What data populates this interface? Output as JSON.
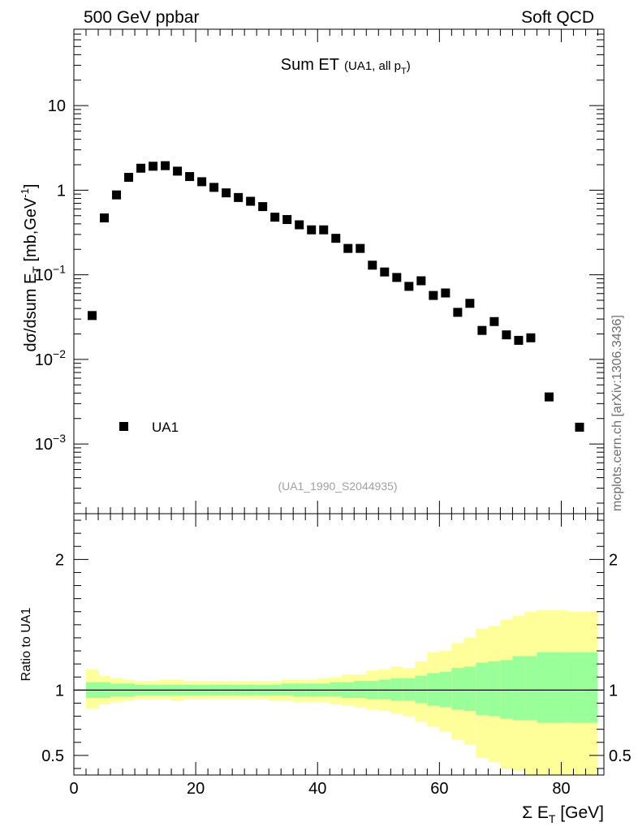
{
  "header": {
    "left": "500 GeV ppbar",
    "right": "Soft QCD"
  },
  "watermark": "mcplots.cern.ch [arXiv:1306.3436]",
  "chart_data": [
    {
      "type": "scatter",
      "panel": "main",
      "title_main": "Sum ET",
      "title_sub": "(UA1, all p",
      "title_sub_index": "T",
      "title_sub_close": ")",
      "ylabel": "dσ/dsum E",
      "ylabel_index": "T",
      "ylabel_unit_open": " [mb,GeV",
      "ylabel_unit_power": "-1",
      "ylabel_unit_close": "]",
      "yscale": "log",
      "ylim": [
        0.00015,
        80
      ],
      "xlim": [
        0,
        87
      ],
      "yticks": [
        {
          "value": 10,
          "base": "10",
          "exp": ""
        },
        {
          "value": 1,
          "base": "1",
          "exp": ""
        },
        {
          "value": 0.1,
          "base": "10",
          "exp": "−1"
        },
        {
          "value": 0.01,
          "base": "10",
          "exp": "−2"
        },
        {
          "value": 0.001,
          "base": "10",
          "exp": "−3"
        }
      ],
      "series": [
        {
          "name": "UA1",
          "color": "#000000",
          "x": [
            3,
            5,
            7,
            9,
            11,
            13,
            15,
            17,
            19,
            21,
            23,
            25,
            27,
            29,
            31,
            33,
            35,
            37,
            39,
            41,
            43,
            45,
            47,
            49,
            51,
            53,
            55,
            57,
            59,
            61,
            63,
            65,
            67,
            69,
            71,
            73,
            75,
            78,
            83
          ],
          "y": [
            0.033,
            0.47,
            0.88,
            1.42,
            1.82,
            1.92,
            1.95,
            1.68,
            1.45,
            1.26,
            1.08,
            0.93,
            0.82,
            0.74,
            0.64,
            0.48,
            0.45,
            0.39,
            0.34,
            0.34,
            0.27,
            0.205,
            0.205,
            0.13,
            0.108,
            0.093,
            0.073,
            0.085,
            0.057,
            0.061,
            0.036,
            0.046,
            0.022,
            0.028,
            0.0195,
            0.0168,
            0.018,
            0.0036,
            0.00158
          ]
        }
      ],
      "legend": [
        {
          "label": "UA1",
          "marker": "square"
        }
      ],
      "annotation": "(UA1_1990_S2044935)"
    },
    {
      "type": "area",
      "panel": "ratio",
      "ylabel": "Ratio to UA1",
      "xlabel": "Σ E",
      "xlabel_index": "T",
      "xlabel_unit": " [GeV]",
      "xlim": [
        0,
        87
      ],
      "ylim": [
        0.35,
        2.35
      ],
      "xticks": [
        "0",
        "20",
        "40",
        "60",
        "80"
      ],
      "yticks": [
        "0.5",
        "1",
        "2"
      ],
      "reference": 1,
      "colors": {
        "inner": "#99ff99",
        "outer": "#ffff99",
        "reference": "#000000"
      },
      "bins": [
        {
          "lo": 2,
          "hi": 4,
          "in_lo": 0.94,
          "in_hi": 1.06,
          "out_lo": 0.86,
          "out_hi": 1.16
        },
        {
          "lo": 4,
          "hi": 6,
          "in_lo": 0.94,
          "in_hi": 1.06,
          "out_lo": 0.89,
          "out_hi": 1.11
        },
        {
          "lo": 6,
          "hi": 8,
          "in_lo": 0.95,
          "in_hi": 1.05,
          "out_lo": 0.91,
          "out_hi": 1.09
        },
        {
          "lo": 8,
          "hi": 10,
          "in_lo": 0.95,
          "in_hi": 1.05,
          "out_lo": 0.92,
          "out_hi": 1.08
        },
        {
          "lo": 10,
          "hi": 12,
          "in_lo": 0.96,
          "in_hi": 1.04,
          "out_lo": 0.93,
          "out_hi": 1.07
        },
        {
          "lo": 12,
          "hi": 14,
          "in_lo": 0.96,
          "in_hi": 1.04,
          "out_lo": 0.93,
          "out_hi": 1.07
        },
        {
          "lo": 14,
          "hi": 16,
          "in_lo": 0.96,
          "in_hi": 1.04,
          "out_lo": 0.93,
          "out_hi": 1.08
        },
        {
          "lo": 16,
          "hi": 18,
          "in_lo": 0.96,
          "in_hi": 1.04,
          "out_lo": 0.92,
          "out_hi": 1.08
        },
        {
          "lo": 18,
          "hi": 20,
          "in_lo": 0.96,
          "in_hi": 1.04,
          "out_lo": 0.93,
          "out_hi": 1.07
        },
        {
          "lo": 20,
          "hi": 22,
          "in_lo": 0.96,
          "in_hi": 1.04,
          "out_lo": 0.93,
          "out_hi": 1.07
        },
        {
          "lo": 22,
          "hi": 24,
          "in_lo": 0.96,
          "in_hi": 1.04,
          "out_lo": 0.93,
          "out_hi": 1.07
        },
        {
          "lo": 24,
          "hi": 26,
          "in_lo": 0.96,
          "in_hi": 1.04,
          "out_lo": 0.93,
          "out_hi": 1.07
        },
        {
          "lo": 26,
          "hi": 28,
          "in_lo": 0.96,
          "in_hi": 1.04,
          "out_lo": 0.93,
          "out_hi": 1.07
        },
        {
          "lo": 28,
          "hi": 30,
          "in_lo": 0.96,
          "in_hi": 1.04,
          "out_lo": 0.93,
          "out_hi": 1.07
        },
        {
          "lo": 30,
          "hi": 32,
          "in_lo": 0.96,
          "in_hi": 1.04,
          "out_lo": 0.93,
          "out_hi": 1.07
        },
        {
          "lo": 32,
          "hi": 34,
          "in_lo": 0.96,
          "in_hi": 1.04,
          "out_lo": 0.92,
          "out_hi": 1.07
        },
        {
          "lo": 34,
          "hi": 36,
          "in_lo": 0.96,
          "in_hi": 1.05,
          "out_lo": 0.92,
          "out_hi": 1.08
        },
        {
          "lo": 36,
          "hi": 38,
          "in_lo": 0.95,
          "in_hi": 1.05,
          "out_lo": 0.91,
          "out_hi": 1.08
        },
        {
          "lo": 38,
          "hi": 40,
          "in_lo": 0.95,
          "in_hi": 1.05,
          "out_lo": 0.91,
          "out_hi": 1.08
        },
        {
          "lo": 40,
          "hi": 42,
          "in_lo": 0.95,
          "in_hi": 1.05,
          "out_lo": 0.91,
          "out_hi": 1.09
        },
        {
          "lo": 42,
          "hi": 44,
          "in_lo": 0.95,
          "in_hi": 1.06,
          "out_lo": 0.89,
          "out_hi": 1.1
        },
        {
          "lo": 44,
          "hi": 46,
          "in_lo": 0.94,
          "in_hi": 1.06,
          "out_lo": 0.88,
          "out_hi": 1.12
        },
        {
          "lo": 46,
          "hi": 48,
          "in_lo": 0.94,
          "in_hi": 1.07,
          "out_lo": 0.87,
          "out_hi": 1.12
        },
        {
          "lo": 48,
          "hi": 50,
          "in_lo": 0.93,
          "in_hi": 1.07,
          "out_lo": 0.85,
          "out_hi": 1.15
        },
        {
          "lo": 50,
          "hi": 52,
          "in_lo": 0.93,
          "in_hi": 1.08,
          "out_lo": 0.84,
          "out_hi": 1.16
        },
        {
          "lo": 52,
          "hi": 54,
          "in_lo": 0.92,
          "in_hi": 1.09,
          "out_lo": 0.82,
          "out_hi": 1.18
        },
        {
          "lo": 54,
          "hi": 56,
          "in_lo": 0.92,
          "in_hi": 1.09,
          "out_lo": 0.8,
          "out_hi": 1.17
        },
        {
          "lo": 56,
          "hi": 58,
          "in_lo": 0.9,
          "in_hi": 1.11,
          "out_lo": 0.76,
          "out_hi": 1.22
        },
        {
          "lo": 58,
          "hi": 60,
          "in_lo": 0.88,
          "in_hi": 1.13,
          "out_lo": 0.72,
          "out_hi": 1.29
        },
        {
          "lo": 60,
          "hi": 62,
          "in_lo": 0.87,
          "in_hi": 1.14,
          "out_lo": 0.68,
          "out_hi": 1.3
        },
        {
          "lo": 62,
          "hi": 64,
          "in_lo": 0.85,
          "in_hi": 1.17,
          "out_lo": 0.62,
          "out_hi": 1.36
        },
        {
          "lo": 64,
          "hi": 66,
          "in_lo": 0.84,
          "in_hi": 1.18,
          "out_lo": 0.58,
          "out_hi": 1.4
        },
        {
          "lo": 66,
          "hi": 68,
          "in_lo": 0.81,
          "in_hi": 1.21,
          "out_lo": 0.48,
          "out_hi": 1.47
        },
        {
          "lo": 68,
          "hi": 70,
          "in_lo": 0.8,
          "in_hi": 1.22,
          "out_lo": 0.45,
          "out_hi": 1.49
        },
        {
          "lo": 70,
          "hi": 72,
          "in_lo": 0.78,
          "in_hi": 1.23,
          "out_lo": 0.4,
          "out_hi": 1.54
        },
        {
          "lo": 72,
          "hi": 74,
          "in_lo": 0.77,
          "in_hi": 1.26,
          "out_lo": 0.38,
          "out_hi": 1.57
        },
        {
          "lo": 74,
          "hi": 76,
          "in_lo": 0.77,
          "in_hi": 1.26,
          "out_lo": 0.35,
          "out_hi": 1.6
        },
        {
          "lo": 76,
          "hi": 81,
          "in_lo": 0.75,
          "in_hi": 1.29,
          "out_lo": 0.35,
          "out_hi": 1.61
        },
        {
          "lo": 81,
          "hi": 86,
          "in_lo": 0.75,
          "in_hi": 1.29,
          "out_lo": 0.35,
          "out_hi": 1.6
        }
      ]
    }
  ]
}
